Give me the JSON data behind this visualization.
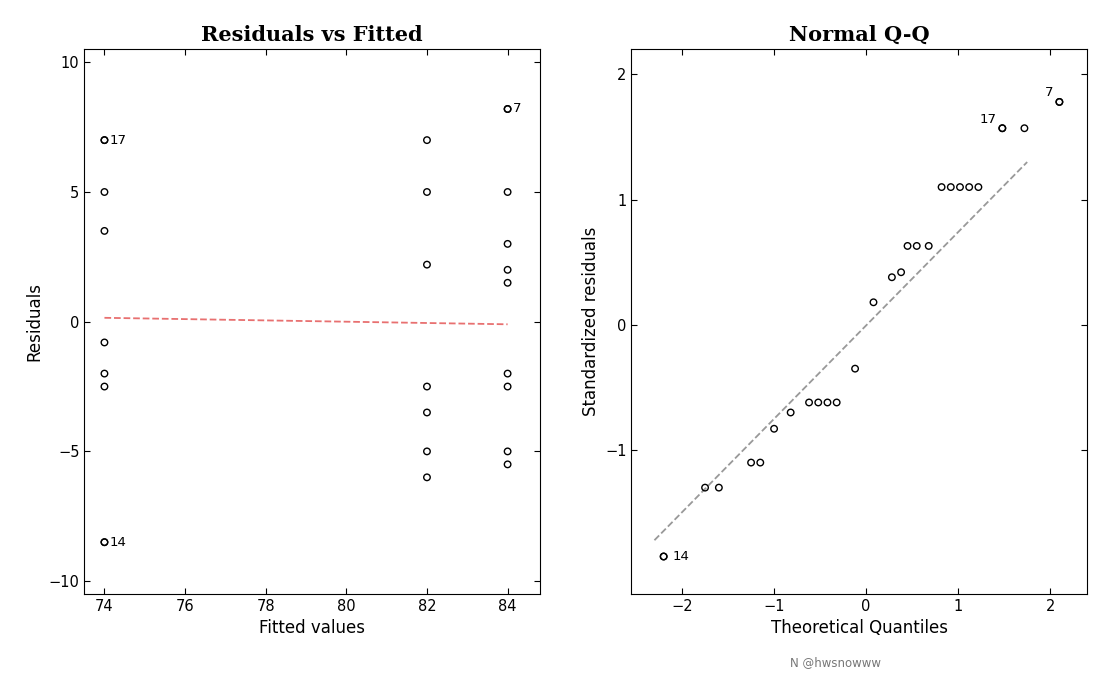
{
  "title1": "Residuals vs Fitted",
  "title2": "Normal Q-Q",
  "xlabel1": "Fitted values",
  "ylabel1": "Residuals",
  "xlabel2": "Theoretical Quantiles",
  "ylabel2": "Standardized residuals",
  "watermark": "N @hwsnowww",
  "rvf_points": [
    [
      74.0,
      7.0
    ],
    [
      74.0,
      5.0
    ],
    [
      74.0,
      3.5
    ],
    [
      74.0,
      -0.8
    ],
    [
      74.0,
      -2.0
    ],
    [
      74.0,
      -2.5
    ],
    [
      74.0,
      -8.5
    ],
    [
      82.0,
      7.0
    ],
    [
      82.0,
      5.0
    ],
    [
      82.0,
      2.2
    ],
    [
      82.0,
      -2.5
    ],
    [
      82.0,
      -3.5
    ],
    [
      82.0,
      -5.0
    ],
    [
      82.0,
      -6.0
    ],
    [
      84.0,
      8.2
    ],
    [
      84.0,
      5.0
    ],
    [
      84.0,
      3.0
    ],
    [
      84.0,
      2.0
    ],
    [
      84.0,
      1.5
    ],
    [
      84.0,
      -2.0
    ],
    [
      84.0,
      -2.5
    ],
    [
      84.0,
      -5.0
    ],
    [
      84.0,
      -5.5
    ]
  ],
  "rvf_labeled": [
    [
      74.0,
      7.0,
      "17"
    ],
    [
      74.0,
      -8.5,
      "14"
    ],
    [
      84.0,
      8.2,
      "7"
    ]
  ],
  "rvf_line_x": [
    74.0,
    84.0
  ],
  "rvf_line_y": [
    0.15,
    -0.1
  ],
  "rvf_line_color": "#e87070",
  "qq_points": [
    [
      -2.2,
      -1.85
    ],
    [
      -1.75,
      -1.3
    ],
    [
      -1.6,
      -1.3
    ],
    [
      -1.25,
      -1.1
    ],
    [
      -1.15,
      -1.1
    ],
    [
      -1.0,
      -0.83
    ],
    [
      -0.82,
      -0.7
    ],
    [
      -0.62,
      -0.62
    ],
    [
      -0.52,
      -0.62
    ],
    [
      -0.42,
      -0.62
    ],
    [
      -0.32,
      -0.62
    ],
    [
      -0.12,
      -0.35
    ],
    [
      0.08,
      0.18
    ],
    [
      0.28,
      0.38
    ],
    [
      0.38,
      0.42
    ],
    [
      0.45,
      0.63
    ],
    [
      0.55,
      0.63
    ],
    [
      0.68,
      0.63
    ],
    [
      0.82,
      1.1
    ],
    [
      0.92,
      1.1
    ],
    [
      1.02,
      1.1
    ],
    [
      1.12,
      1.1
    ],
    [
      1.22,
      1.1
    ],
    [
      1.48,
      1.57
    ],
    [
      1.72,
      1.57
    ],
    [
      2.1,
      1.78
    ]
  ],
  "qq_labeled": [
    [
      -2.2,
      -1.85,
      "14"
    ],
    [
      1.48,
      1.57,
      "17"
    ],
    [
      2.1,
      1.78,
      "7"
    ]
  ],
  "qq_line_x": [
    -2.3,
    1.75
  ],
  "qq_line_y": [
    -1.72,
    1.3
  ],
  "qq_line_color": "#999999",
  "bg_color": "#ffffff",
  "point_color": "#000000",
  "label_color": "#000000",
  "xlim1": [
    73.5,
    84.8
  ],
  "ylim1": [
    -10.5,
    10.5
  ],
  "xticks1": [
    74,
    76,
    78,
    80,
    82,
    84
  ],
  "yticks1": [
    -10,
    -5,
    0,
    5,
    10
  ],
  "xlim2": [
    -2.55,
    2.4
  ],
  "ylim2": [
    -2.15,
    2.2
  ],
  "xticks2": [
    -2,
    -1,
    0,
    1,
    2
  ],
  "yticks2": [
    -1,
    0,
    1,
    2
  ]
}
